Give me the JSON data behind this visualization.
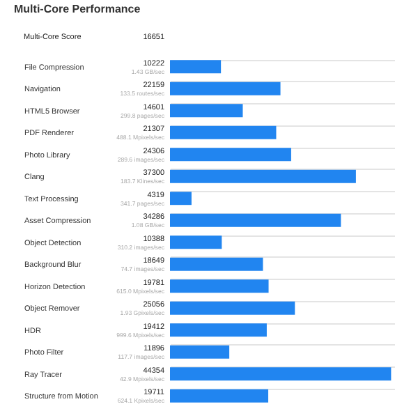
{
  "chart_data": {
    "type": "bar",
    "orientation": "horizontal",
    "title": "Multi-Core Performance",
    "categories": [
      "File Compression",
      "Navigation",
      "HTML5 Browser",
      "PDF Renderer",
      "Photo Library",
      "Clang",
      "Text Processing",
      "Asset Compression",
      "Object Detection",
      "Background Blur",
      "Horizon Detection",
      "Object Remover",
      "HDR",
      "Photo Filter",
      "Ray Tracer",
      "Structure from Motion"
    ],
    "values": [
      10222,
      22159,
      14601,
      21307,
      24306,
      37300,
      4319,
      34286,
      10388,
      18649,
      19781,
      25056,
      19412,
      11896,
      44354,
      19711
    ],
    "color": "#2185f0",
    "xlim": [
      0,
      45000
    ],
    "data_labels": true,
    "grid": "y",
    "tick_labels": "y",
    "annotations": [
      "Multi-Core Score",
      "16651",
      "1.43 GB/sec",
      "133.5 routes/sec",
      "299.8 pages/sec",
      "488.1 Mpixels/sec",
      "289.6 images/sec",
      "183.7 Klines/sec",
      "341.7 pages/sec",
      "1.08 GB/sec",
      "310.2 images/sec",
      "74.7 images/sec",
      "615.0 Mpixels/sec",
      "1.93 Gpixels/sec",
      "999.6 Mpixels/sec",
      "117.7 images/sec",
      "42.9 Mpixels/sec",
      "624.1 Kpixels/sec"
    ]
  }
}
